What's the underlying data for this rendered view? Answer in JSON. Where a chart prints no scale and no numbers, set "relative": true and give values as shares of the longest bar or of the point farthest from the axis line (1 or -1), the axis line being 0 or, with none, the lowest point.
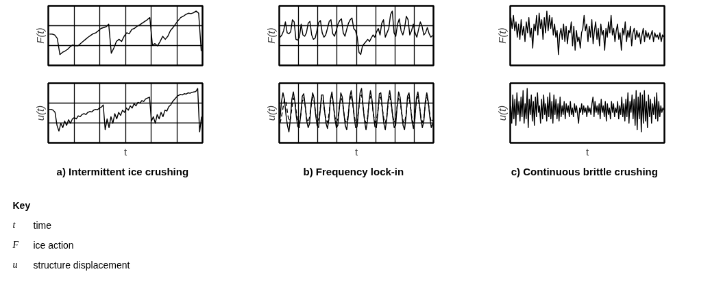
{
  "chart_data": [
    {
      "type": "line",
      "relative": true,
      "ylabel": "F(t)",
      "grid": true,
      "tick_labels": false,
      "categories": [
        null,
        null,
        null,
        null,
        null,
        null,
        null,
        null,
        null,
        null,
        null,
        null,
        null,
        null,
        null,
        null,
        null,
        null,
        null,
        null,
        null,
        null,
        null,
        null,
        null,
        null,
        null,
        null,
        null,
        null,
        null,
        null,
        null,
        null,
        null,
        null,
        null,
        null,
        null,
        null,
        null,
        null,
        null,
        null,
        null,
        null,
        null,
        null,
        null,
        null,
        null,
        null,
        null,
        null,
        null,
        null,
        null,
        null,
        null,
        null
      ],
      "series": [
        {
          "color": "#000000",
          "values": [
            0.47,
            0.47,
            0.45,
            0.37,
            0.0,
            0.05,
            0.08,
            0.12,
            0.18,
            0.22,
            0.2,
            0.2,
            0.25,
            0.3,
            0.35,
            0.4,
            0.44,
            0.48,
            0.5,
            0.55,
            0.6,
            0.62,
            0.64,
            0.7,
            0.03,
            0.15,
            0.3,
            0.35,
            0.3,
            0.42,
            0.5,
            0.48,
            0.58,
            0.6,
            0.65,
            0.68,
            0.72,
            0.76,
            0.8,
            0.85,
            0.22,
            0.25,
            0.2,
            0.3,
            0.42,
            0.35,
            0.42,
            0.55,
            0.62,
            0.7,
            0.78,
            0.85,
            0.88,
            0.92,
            0.95,
            0.94,
            0.96,
            1.0,
            0.95,
            0.08
          ]
        }
      ]
    },
    {
      "type": "line",
      "relative": true,
      "ylabel": "F(t)",
      "grid": true,
      "tick_labels": false,
      "categories": [
        null,
        null,
        null,
        null,
        null,
        null,
        null,
        null,
        null,
        null,
        null,
        null,
        null,
        null,
        null,
        null,
        null,
        null,
        null,
        null,
        null,
        null,
        null,
        null,
        null,
        null,
        null,
        null,
        null,
        null,
        null,
        null,
        null,
        null,
        null,
        null,
        null,
        null,
        null,
        null,
        null,
        null,
        null,
        null,
        null,
        null,
        null,
        null,
        null,
        null,
        null,
        null,
        null,
        null,
        null,
        null,
        null,
        null,
        null,
        null,
        null,
        null,
        null,
        null,
        null,
        null,
        null,
        null,
        null,
        null,
        null,
        null,
        null,
        null,
        null,
        null,
        null,
        null,
        null,
        null,
        null,
        null,
        null,
        null,
        null,
        null,
        null,
        null
      ],
      "series": [
        {
          "color": "#000000",
          "values": [
            0.4,
            0.45,
            0.55,
            0.75,
            0.5,
            0.48,
            0.52,
            0.8,
            0.75,
            0.35,
            0.33,
            0.4,
            0.7,
            0.45,
            0.42,
            0.5,
            0.72,
            0.76,
            0.45,
            0.35,
            0.38,
            0.55,
            0.74,
            0.78,
            0.5,
            0.4,
            0.45,
            0.6,
            0.76,
            0.8,
            0.48,
            0.42,
            0.55,
            0.7,
            0.78,
            0.82,
            0.5,
            0.42,
            0.58,
            0.72,
            0.8,
            0.84,
            0.6,
            0.55,
            0.4,
            0.05,
            0.0,
            0.2,
            0.25,
            0.3,
            0.35,
            0.3,
            0.38,
            0.45,
            0.4,
            0.52,
            0.6,
            0.45,
            0.72,
            0.8,
            0.4,
            0.5,
            0.6,
            0.92,
            1.0,
            0.5,
            0.42,
            0.7,
            0.82,
            0.55,
            0.45,
            0.6,
            0.88,
            0.8,
            0.45,
            0.55,
            0.7,
            0.5,
            0.4,
            0.58,
            0.75,
            0.65,
            0.45,
            0.5,
            0.62,
            0.48,
            0.4,
            0.44
          ]
        }
      ]
    },
    {
      "type": "line",
      "relative": true,
      "ylabel": "F(t)",
      "tick_labels": false,
      "categories": [
        null,
        null,
        null,
        null,
        null,
        null,
        null,
        null,
        null,
        null,
        null,
        null,
        null,
        null,
        null,
        null,
        null,
        null,
        null,
        null,
        null,
        null,
        null,
        null,
        null,
        null,
        null,
        null,
        null,
        null,
        null,
        null,
        null,
        null,
        null,
        null,
        null,
        null,
        null,
        null,
        null,
        null,
        null,
        null,
        null,
        null,
        null,
        null,
        null,
        null,
        null,
        null,
        null,
        null,
        null,
        null,
        null,
        null,
        null,
        null,
        null,
        null,
        null,
        null,
        null,
        null,
        null,
        null,
        null,
        null,
        null,
        null,
        null,
        null,
        null,
        null,
        null,
        null,
        null,
        null,
        null,
        null,
        null,
        null,
        null,
        null,
        null,
        null,
        null,
        null,
        null,
        null,
        null,
        null,
        null,
        null,
        null,
        null,
        null,
        null,
        null,
        null,
        null,
        null,
        null,
        null,
        null,
        null,
        null,
        null,
        null,
        null,
        null,
        null,
        null,
        null,
        null,
        null,
        null,
        null
      ],
      "series": [
        {
          "color": "#000000",
          "values": [
            0.85,
            0.6,
            0.9,
            0.55,
            0.75,
            0.4,
            0.7,
            0.35,
            0.8,
            0.45,
            0.65,
            0.3,
            0.75,
            0.5,
            0.85,
            0.4,
            0.6,
            0.15,
            0.7,
            0.55,
            0.9,
            0.45,
            0.95,
            0.6,
            0.8,
            0.35,
            0.85,
            0.5,
            1.0,
            0.55,
            0.9,
            0.6,
            0.85,
            0.45,
            0.7,
            0.4,
            0.55,
            0.0,
            0.45,
            0.6,
            0.35,
            0.7,
            0.3,
            0.65,
            0.25,
            0.55,
            0.5,
            0.75,
            0.2,
            0.65,
            0.1,
            0.55,
            0.3,
            0.4,
            0.15,
            0.5,
            0.6,
            0.9,
            0.55,
            0.7,
            0.3,
            0.65,
            0.4,
            0.8,
            0.25,
            0.55,
            0.75,
            0.35,
            0.6,
            0.2,
            0.7,
            0.45,
            0.55,
            0.1,
            0.6,
            0.4,
            0.75,
            0.5,
            0.9,
            0.45,
            0.6,
            0.3,
            0.55,
            0.7,
            0.35,
            0.5,
            0.1,
            0.6,
            0.45,
            0.75,
            0.3,
            0.55,
            0.4,
            0.65,
            0.2,
            0.5,
            0.6,
            0.35,
            0.55,
            0.4,
            0.5,
            0.25,
            0.45,
            0.6,
            0.3,
            0.55,
            0.4,
            0.5,
            0.35,
            0.45,
            0.55,
            0.3,
            0.5,
            0.4,
            0.45,
            0.35,
            0.5,
            0.3,
            0.45,
            0.4
          ]
        }
      ]
    },
    {
      "type": "line",
      "relative": true,
      "title": "a)   Intermittent ice crushing",
      "xlabel": "t",
      "ylabel": "u(t)",
      "grid": true,
      "tick_labels": false,
      "categories": [
        null,
        null,
        null,
        null,
        null,
        null,
        null,
        null,
        null,
        null,
        null,
        null,
        null,
        null,
        null,
        null,
        null,
        null,
        null,
        null,
        null,
        null,
        null,
        null,
        null,
        null,
        null,
        null,
        null,
        null,
        null,
        null,
        null,
        null,
        null,
        null,
        null,
        null,
        null,
        null,
        null,
        null,
        null,
        null,
        null,
        null,
        null,
        null,
        null,
        null,
        null,
        null,
        null,
        null,
        null,
        null,
        null,
        null,
        null,
        null,
        null,
        null,
        null,
        null,
        null,
        null,
        null,
        null,
        null,
        null,
        null,
        null,
        null,
        null,
        null,
        null,
        null,
        null,
        null,
        null
      ],
      "series": [
        {
          "color": "#000000",
          "values": [
            0.52,
            0.52,
            0.5,
            0.45,
            0.15,
            0.02,
            0.2,
            0.1,
            0.25,
            0.15,
            0.28,
            0.2,
            0.3,
            0.33,
            0.3,
            0.37,
            0.35,
            0.4,
            0.42,
            0.4,
            0.45,
            0.47,
            0.46,
            0.5,
            0.52,
            0.51,
            0.55,
            0.57,
            0.62,
            0.05,
            0.3,
            0.1,
            0.35,
            0.2,
            0.42,
            0.3,
            0.45,
            0.38,
            0.5,
            0.45,
            0.55,
            0.5,
            0.6,
            0.55,
            0.65,
            0.6,
            0.68,
            0.66,
            0.72,
            0.7,
            0.76,
            0.78,
            0.8,
            0.25,
            0.35,
            0.2,
            0.4,
            0.3,
            0.45,
            0.35,
            0.5,
            0.48,
            0.58,
            0.62,
            0.7,
            0.75,
            0.8,
            0.84,
            0.86,
            0.85,
            0.88,
            0.87,
            0.9,
            0.89,
            0.91,
            0.92,
            0.93,
            1.0,
            0.0,
            0.35
          ]
        }
      ]
    },
    {
      "type": "line",
      "relative": true,
      "title": "b)   Frequency lock-in",
      "xlabel": "t",
      "ylabel": "u(t)",
      "grid": true,
      "tick_labels": false,
      "categories": [
        null,
        null,
        null,
        null,
        null,
        null,
        null,
        null,
        null,
        null,
        null,
        null,
        null,
        null,
        null,
        null,
        null,
        null,
        null,
        null,
        null,
        null,
        null,
        null,
        null,
        null,
        null,
        null,
        null,
        null,
        null,
        null,
        null,
        null,
        null,
        null,
        null,
        null,
        null,
        null,
        null,
        null,
        null,
        null,
        null,
        null,
        null,
        null,
        null,
        null,
        null,
        null,
        null,
        null,
        null,
        null,
        null,
        null,
        null,
        null,
        null,
        null,
        null,
        null,
        null,
        null,
        null,
        null,
        null,
        null,
        null,
        null,
        null,
        null,
        null,
        null,
        null,
        null,
        null,
        null,
        null,
        null,
        null,
        null,
        null,
        null,
        null,
        null,
        null,
        null,
        null,
        null,
        null,
        null,
        null,
        null,
        null,
        null,
        null,
        null,
        null,
        null,
        null,
        null
      ],
      "series": [
        {
          "color": "#000000",
          "line_style": "solid",
          "values": [
            0.3,
            0.7,
            0.9,
            0.75,
            0.4,
            0.15,
            0.0,
            0.3,
            0.75,
            0.92,
            0.7,
            0.35,
            0.12,
            0.1,
            0.4,
            0.82,
            0.88,
            0.6,
            0.25,
            0.1,
            0.2,
            0.65,
            0.9,
            0.78,
            0.4,
            0.15,
            0.1,
            0.45,
            0.85,
            0.85,
            0.5,
            0.2,
            0.08,
            0.3,
            0.75,
            0.92,
            0.65,
            0.3,
            0.1,
            0.15,
            0.55,
            0.9,
            0.8,
            0.45,
            0.15,
            0.05,
            0.35,
            0.8,
            0.95,
            0.7,
            0.35,
            0.1,
            0.12,
            0.5,
            0.9,
            1.0,
            0.6,
            0.25,
            0.05,
            0.25,
            0.7,
            0.95,
            0.75,
            0.4,
            0.12,
            0.1,
            0.45,
            0.88,
            0.9,
            0.55,
            0.2,
            0.05,
            0.3,
            0.75,
            0.95,
            0.7,
            0.35,
            0.1,
            0.15,
            0.6,
            0.92,
            0.8,
            0.45,
            0.15,
            0.05,
            0.35,
            0.82,
            0.9,
            0.6,
            0.25,
            0.08,
            0.3,
            0.78,
            0.92,
            0.65,
            0.3,
            0.1,
            0.25,
            0.7,
            0.9,
            0.7,
            0.35,
            0.1,
            0.2
          ]
        },
        {
          "color": "#000000",
          "line_style": "dashed",
          "values": [
            0.2,
            0.35,
            0.55,
            0.75,
            0.7,
            0.45,
            0.25,
            0.3,
            0.55,
            0.78,
            0.72,
            0.45,
            0.25,
            0.2,
            0.4,
            0.7,
            0.8,
            0.6,
            0.3,
            0.22,
            0.35,
            0.6,
            0.8,
            0.7,
            0.42,
            0.25,
            0.28,
            0.5,
            0.78,
            0.75,
            0.5,
            0.28,
            0.22,
            0.4,
            0.7,
            0.82,
            0.62,
            0.35,
            0.22,
            0.3,
            0.55,
            0.8,
            0.72,
            0.45,
            0.25,
            0.22,
            0.4,
            0.72,
            0.85,
            0.65,
            0.4,
            0.2,
            0.25,
            0.5,
            0.8,
            0.85,
            0.6,
            0.3,
            0.2,
            0.32,
            0.65,
            0.82,
            0.7,
            0.4,
            0.22,
            0.25,
            0.48,
            0.78,
            0.8,
            0.55,
            0.3,
            0.2,
            0.35,
            0.7,
            0.82,
            0.65,
            0.38,
            0.22,
            0.28,
            0.58,
            0.8,
            0.72,
            0.45,
            0.25,
            0.2,
            0.4,
            0.75,
            0.8,
            0.58,
            0.3,
            0.2,
            0.38,
            0.72,
            0.82,
            0.6,
            0.35,
            0.22,
            0.32,
            0.65,
            0.8,
            0.68,
            0.4,
            0.22,
            0.28
          ]
        }
      ]
    },
    {
      "type": "line",
      "relative": true,
      "title": "c)   Continuous brittle crushing",
      "xlabel": "t",
      "ylabel": "u(t)",
      "tick_labels": false,
      "categories": [
        null,
        null,
        null,
        null,
        null,
        null,
        null,
        null,
        null,
        null,
        null,
        null,
        null,
        null,
        null,
        null,
        null,
        null,
        null,
        null,
        null,
        null,
        null,
        null,
        null,
        null,
        null,
        null,
        null,
        null,
        null,
        null,
        null,
        null,
        null,
        null,
        null,
        null,
        null,
        null,
        null,
        null,
        null,
        null,
        null,
        null,
        null,
        null,
        null,
        null,
        null,
        null,
        null,
        null,
        null,
        null,
        null,
        null,
        null,
        null,
        null,
        null,
        null,
        null,
        null,
        null,
        null,
        null,
        null,
        null,
        null,
        null,
        null,
        null,
        null,
        null,
        null,
        null,
        null,
        null,
        null,
        null,
        null,
        null,
        null,
        null,
        null,
        null,
        null,
        null,
        null,
        null,
        null,
        null,
        null,
        null,
        null,
        null,
        null,
        null,
        null,
        null,
        null,
        null,
        null,
        null,
        null,
        null,
        null,
        null,
        null,
        null,
        null,
        null,
        null,
        null,
        null,
        null,
        null,
        null,
        null,
        null,
        null,
        null,
        null,
        null,
        null,
        null,
        null,
        null,
        null,
        null,
        null,
        null,
        null,
        null,
        null,
        null,
        null,
        null,
        null,
        null,
        null,
        null,
        null,
        null,
        null,
        null,
        null,
        null
      ],
      "series": [
        {
          "color": "#000000",
          "values": [
            0.6,
            0.2,
            0.85,
            0.3,
            0.75,
            0.15,
            0.9,
            0.4,
            0.7,
            0.25,
            0.8,
            0.35,
            0.95,
            0.2,
            0.65,
            0.3,
            1.0,
            0.1,
            0.75,
            0.4,
            0.85,
            0.25,
            0.7,
            0.15,
            0.8,
            0.35,
            0.9,
            0.45,
            0.6,
            0.2,
            0.75,
            0.3,
            0.85,
            0.4,
            0.65,
            0.25,
            0.8,
            0.35,
            0.9,
            0.3,
            0.7,
            0.2,
            0.85,
            0.4,
            0.75,
            0.3,
            0.65,
            0.25,
            0.8,
            0.35,
            0.6,
            0.4,
            0.7,
            0.3,
            0.65,
            0.45,
            0.6,
            0.35,
            0.7,
            0.4,
            0.55,
            0.35,
            0.65,
            0.45,
            0.6,
            0.4,
            0.2,
            0.55,
            0.45,
            0.65,
            0.4,
            0.6,
            0.45,
            0.55,
            0.35,
            0.6,
            0.45,
            0.55,
            0.4,
            0.65,
            0.8,
            0.35,
            0.7,
            0.45,
            0.6,
            0.4,
            0.65,
            0.3,
            0.75,
            0.45,
            0.6,
            0.35,
            0.7,
            0.25,
            0.65,
            0.4,
            0.55,
            0.3,
            0.7,
            0.45,
            0.65,
            0.35,
            0.55,
            0.45,
            0.7,
            0.3,
            0.6,
            0.4,
            0.8,
            0.35,
            0.65,
            0.25,
            0.75,
            0.35,
            0.9,
            0.2,
            0.7,
            0.45,
            0.85,
            0.3,
            0.75,
            0.15,
            0.95,
            0.05,
            0.8,
            0.3,
            0.9,
            0.0,
            0.85,
            0.2,
            0.95,
            0.25,
            0.7,
            0.1,
            0.85,
            0.35,
            0.75,
            0.2,
            0.65,
            0.4,
            0.8,
            0.3,
            0.9,
            0.25,
            0.7,
            0.35,
            0.6,
            0.45,
            0.55,
            0.5
          ]
        }
      ]
    },
    {
      "type": "other",
      "title": "Key",
      "annotations": [
        "t",
        "time",
        "F",
        "ice action",
        "u",
        "structure displacement"
      ]
    }
  ]
}
